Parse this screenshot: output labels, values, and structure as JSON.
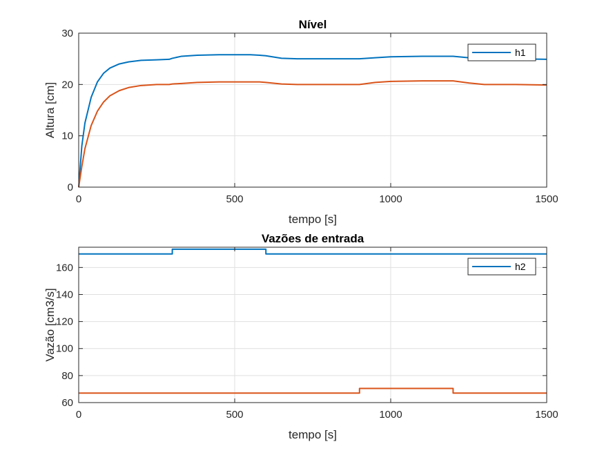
{
  "chart_data": [
    {
      "type": "line",
      "title": "Nível",
      "xlabel": "tempo [s]",
      "ylabel": "Altura [cm]",
      "xlim": [
        0,
        1500
      ],
      "ylim": [
        0,
        30
      ],
      "xticks": [
        0,
        500,
        1000,
        1500
      ],
      "yticks": [
        0,
        10,
        20,
        30
      ],
      "grid": true,
      "legend": {
        "location": "top-right",
        "entries": [
          "h1"
        ]
      },
      "series": [
        {
          "name": "h1",
          "color": "#0072BD",
          "x": [
            0,
            10,
            20,
            40,
            60,
            80,
            100,
            130,
            160,
            200,
            250,
            290,
            300,
            330,
            380,
            450,
            500,
            550,
            580,
            600,
            650,
            700,
            800,
            900,
            950,
            1000,
            1100,
            1200,
            1250,
            1300,
            1400,
            1500
          ],
          "y": [
            0,
            8,
            12.5,
            17.5,
            20.5,
            22.2,
            23.2,
            24.0,
            24.4,
            24.7,
            24.8,
            24.9,
            25.1,
            25.5,
            25.7,
            25.8,
            25.8,
            25.8,
            25.7,
            25.6,
            25.1,
            25.0,
            25.0,
            25.0,
            25.2,
            25.4,
            25.5,
            25.5,
            25.2,
            25.0,
            25.0,
            24.9
          ]
        },
        {
          "color": "#D95319",
          "x": [
            0,
            10,
            20,
            40,
            60,
            80,
            100,
            130,
            160,
            200,
            250,
            290,
            300,
            330,
            380,
            450,
            500,
            550,
            580,
            600,
            650,
            700,
            800,
            900,
            950,
            1000,
            1100,
            1200,
            1250,
            1300,
            1400,
            1500
          ],
          "y": [
            0,
            4,
            7.5,
            12.0,
            14.8,
            16.6,
            17.8,
            18.8,
            19.4,
            19.8,
            20.0,
            20.0,
            20.1,
            20.2,
            20.4,
            20.5,
            20.5,
            20.5,
            20.5,
            20.4,
            20.1,
            20.0,
            20.0,
            20.0,
            20.4,
            20.6,
            20.7,
            20.7,
            20.3,
            20.0,
            20.0,
            19.9
          ]
        }
      ]
    },
    {
      "type": "line",
      "title": "Vazões de entrada",
      "xlabel": "tempo [s]",
      "ylabel": "Vazão [cm3/s]",
      "xlim": [
        0,
        1500
      ],
      "ylim": [
        60,
        175
      ],
      "xticks": [
        0,
        500,
        1000,
        1500
      ],
      "yticks": [
        60,
        80,
        100,
        120,
        140,
        160
      ],
      "grid": true,
      "legend": {
        "location": "top-right",
        "entries": [
          "h2"
        ]
      },
      "series": [
        {
          "name": "h2",
          "color": "#0072BD",
          "x": [
            0,
            300,
            300,
            600,
            600,
            1500
          ],
          "y": [
            170,
            170,
            173.5,
            173.5,
            170,
            170
          ]
        },
        {
          "color": "#D95319",
          "x": [
            0,
            900,
            900,
            1200,
            1200,
            1500
          ],
          "y": [
            67,
            67,
            70.5,
            70.5,
            67,
            67
          ]
        }
      ]
    }
  ]
}
